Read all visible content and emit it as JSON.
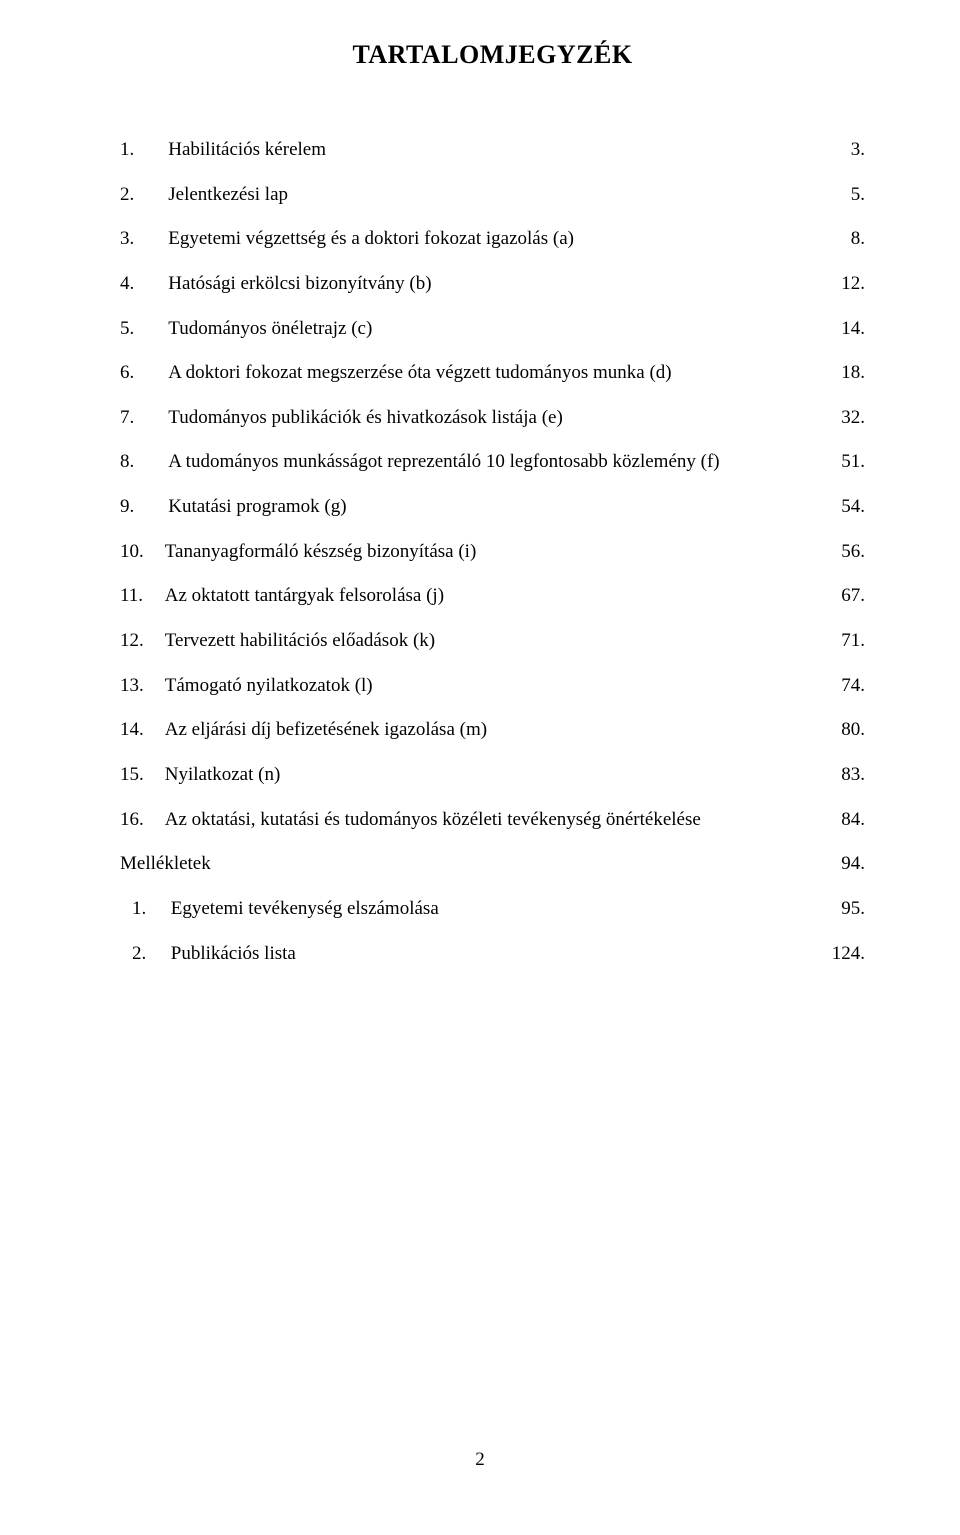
{
  "title": "TARTALOMJEGYZÉK",
  "entries": [
    {
      "num": "1.",
      "label": "Habilitációs kérelem",
      "page": "3."
    },
    {
      "num": "2.",
      "label": "Jelentkezési lap",
      "page": "5."
    },
    {
      "num": "3.",
      "label": "Egyetemi végzettség és a doktori fokozat igazolás (a)",
      "page": "8."
    },
    {
      "num": "4.",
      "label": "Hatósági erkölcsi bizonyítvány (b)",
      "page": "12."
    },
    {
      "num": "5.",
      "label": "Tudományos önéletrajz (c)",
      "page": "14."
    },
    {
      "num": "6.",
      "label": "A doktori fokozat megszerzése óta végzett tudományos munka (d)",
      "page": "18."
    },
    {
      "num": "7.",
      "label": "Tudományos publikációk és hivatkozások listája (e)",
      "page": "32."
    },
    {
      "num": "8.",
      "label": "A tudományos munkásságot reprezentáló 10 legfontosabb közlemény (f)",
      "page": "51."
    },
    {
      "num": "9.",
      "label": "Kutatási programok (g)",
      "page": "54."
    },
    {
      "num": "10.",
      "label": "Tananyagformáló készség bizonyítása (i)",
      "page": "56."
    },
    {
      "num": "11.",
      "label": "Az oktatott tantárgyak felsorolása (j)",
      "page": "67."
    },
    {
      "num": "12.",
      "label": "Tervezett habilitációs előadások (k)",
      "page": "71."
    },
    {
      "num": "13.",
      "label": "Támogató nyilatkozatok (l)",
      "page": "74."
    },
    {
      "num": "14.",
      "label": "Az eljárási díj befizetésének igazolása (m)",
      "page": "80."
    },
    {
      "num": "15.",
      "label": "Nyilatkozat (n)",
      "page": "83."
    },
    {
      "num": "16.",
      "label": "Az oktatási, kutatási és tudományos közéleti tevékenység önértékelése",
      "page": "84."
    }
  ],
  "appendix_heading": {
    "label": "Mellékletek",
    "page": "94."
  },
  "appendix_entries": [
    {
      "num": "1.",
      "label": "Egyetemi tevékenység elszámolása",
      "page": "95."
    },
    {
      "num": "2.",
      "label": "Publikációs lista",
      "page": "124."
    }
  ],
  "page_number": "2",
  "style": {
    "font_family": "Times New Roman",
    "title_fontsize": 26,
    "body_fontsize": 19,
    "text_color": "#000000",
    "background_color": "#ffffff",
    "line_height": 2.35
  }
}
